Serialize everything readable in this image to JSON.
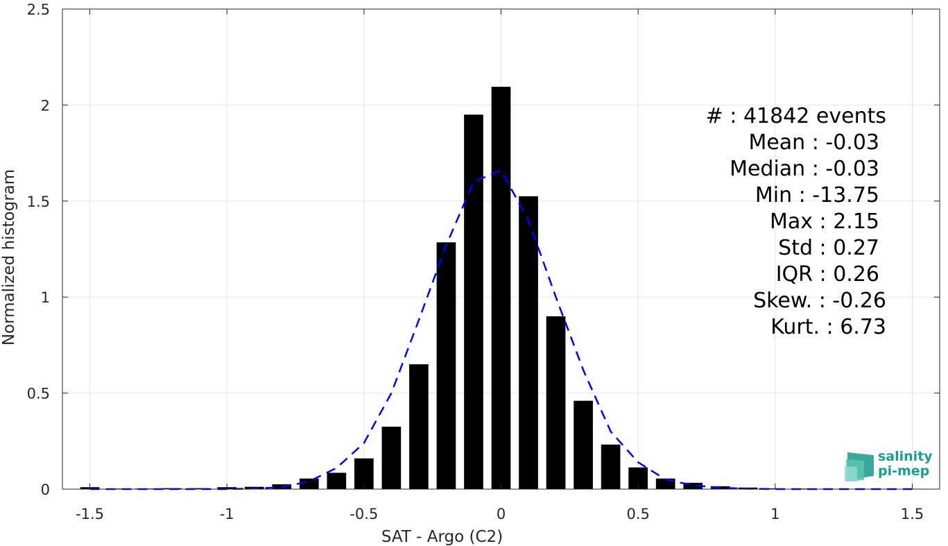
{
  "chart_data": {
    "type": "bar",
    "xlabel": "SAT - Argo (C2)",
    "ylabel": "Normalized histogram",
    "xlim": [
      -1.6,
      1.6
    ],
    "ylim": [
      0,
      2.5
    ],
    "xticks": [
      -1.5,
      -1,
      -0.5,
      0,
      0.5,
      1,
      1.5
    ],
    "xtick_labels": [
      "-1.5",
      "-1",
      "-0.5",
      "0",
      "0.5",
      "1",
      "1.5"
    ],
    "yticks": [
      0,
      0.5,
      1,
      1.5,
      2,
      2.5
    ],
    "ytick_labels": [
      "0",
      "0.5",
      "1",
      "1.5",
      "2",
      "2.5"
    ],
    "grid": true,
    "bar_width": 0.07,
    "bars": {
      "x": [
        -1.5,
        -1.4,
        -1.3,
        -1.2,
        -1.1,
        -1.0,
        -0.9,
        -0.8,
        -0.7,
        -0.6,
        -0.5,
        -0.4,
        -0.3,
        -0.2,
        -0.1,
        0.0,
        0.1,
        0.2,
        0.3,
        0.4,
        0.5,
        0.6,
        0.7,
        0.8,
        0.9,
        1.0,
        1.1,
        1.2,
        1.3,
        1.4,
        1.5
      ],
      "values": [
        0.01,
        0.003,
        0.003,
        0.005,
        0.005,
        0.01,
        0.012,
        0.025,
        0.055,
        0.085,
        0.16,
        0.325,
        0.65,
        1.285,
        1.95,
        2.095,
        1.525,
        0.9,
        0.46,
        0.232,
        0.113,
        0.055,
        0.033,
        0.015,
        0.008,
        0.004,
        0.003,
        0.002,
        0.002,
        0.002,
        0.002
      ],
      "color": "#000000"
    },
    "fit_curve": {
      "x": [
        -1.5,
        -1.4,
        -1.3,
        -1.2,
        -1.1,
        -1.0,
        -0.9,
        -0.8,
        -0.7,
        -0.6,
        -0.5,
        -0.4,
        -0.3,
        -0.2,
        -0.1,
        0.0,
        0.1,
        0.2,
        0.3,
        0.4,
        0.5,
        0.6,
        0.7,
        0.8,
        0.9,
        1.0,
        1.1,
        1.2,
        1.3,
        1.4,
        1.5
      ],
      "values": [
        0.0,
        0.0,
        0.0,
        0.0,
        0.0,
        0.0,
        0.003,
        0.01,
        0.04,
        0.11,
        0.24,
        0.5,
        0.88,
        1.27,
        1.6,
        1.66,
        1.4,
        1.0,
        0.62,
        0.3,
        0.14,
        0.05,
        0.02,
        0.007,
        0.002,
        0.0,
        0.0,
        0.0,
        0.0,
        0.0,
        0.0
      ],
      "color": "#0000ff",
      "style": "dashed"
    },
    "stats": [
      "#  : 41842 events",
      "Mean : -0.03",
      "Median : -0.03",
      "Min : -13.75",
      "Max : 2.15",
      "Std : 0.27",
      "IQR : 0.26",
      "Skew. : -0.26",
      "Kurt. : 6.73"
    ]
  },
  "logo": {
    "line1": "salinity",
    "line2": "pi-mep"
  }
}
